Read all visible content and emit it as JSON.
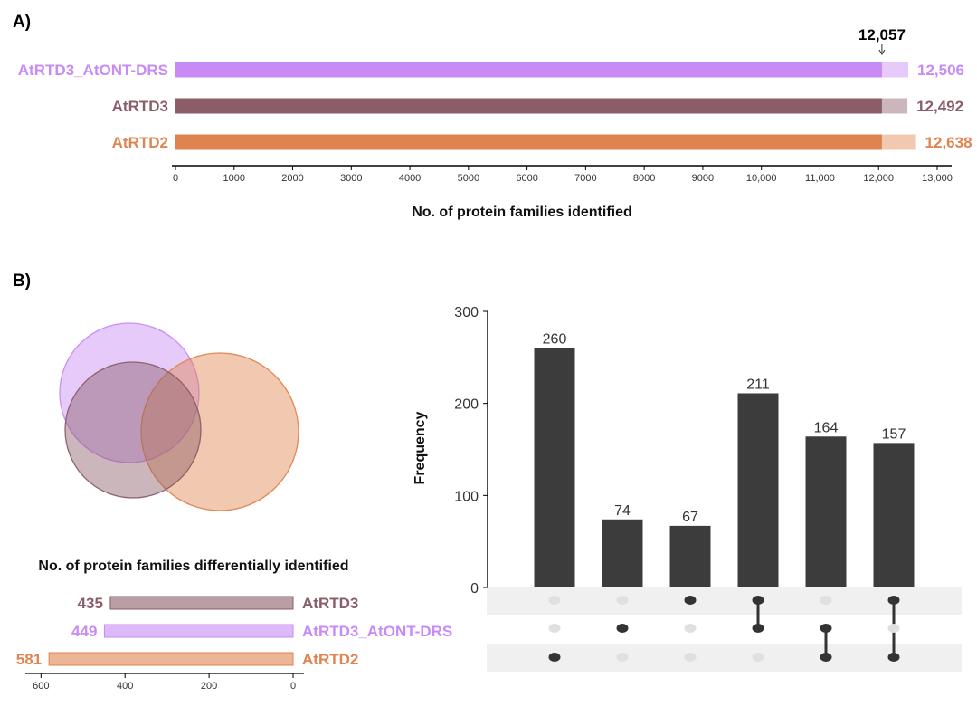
{
  "panel_a_label": "A)",
  "panel_b_label": "B)",
  "colors": {
    "AtRTD3_AtONT-DRS": "#c88af5",
    "AtRTD3": "#8a5d68",
    "AtRTD2": "#df8450"
  },
  "chart_data": [
    {
      "type": "bar",
      "orientation": "horizontal",
      "title": "",
      "xlabel": "No. of protein families identified",
      "ylabel": "",
      "categories": [
        "AtRTD3_AtONT-DRS",
        "AtRTD3",
        "AtRTD2"
      ],
      "values": [
        12506,
        12492,
        12638
      ],
      "value_labels": [
        "12,506",
        "12,492",
        "12,638"
      ],
      "shared_value": 12057,
      "shared_label": "12,057",
      "xlim": [
        0,
        13000
      ],
      "xticks": [
        0,
        1000,
        2000,
        3000,
        4000,
        5000,
        6000,
        7000,
        8000,
        9000,
        10000,
        11000,
        12000,
        13000
      ],
      "xtick_labels": [
        "0",
        "1000",
        "2000",
        "3000",
        "4000",
        "5000",
        "6000",
        "7000",
        "8000",
        "9000",
        "10,000",
        "11,000",
        "12,000",
        "13,000"
      ]
    },
    {
      "type": "venn",
      "sets": [
        "AtRTD3_AtONT-DRS",
        "AtRTD3",
        "AtRTD2"
      ]
    },
    {
      "type": "bar",
      "orientation": "horizontal-reversed",
      "title": "No. of protein families differentially identified",
      "categories": [
        "AtRTD3",
        "AtRTD3_AtONT-DRS",
        "AtRTD2"
      ],
      "values": [
        435,
        449,
        581
      ],
      "value_labels": [
        "435",
        "449",
        "581"
      ],
      "xlim": [
        0,
        620
      ],
      "xticks": [
        600,
        400,
        200,
        0
      ],
      "xtick_labels": [
        "600",
        "400",
        "200",
        "0"
      ]
    },
    {
      "type": "bar",
      "subtype": "upset",
      "ylabel": "Frequency",
      "ylim": [
        0,
        300
      ],
      "yticks": [
        0,
        100,
        200,
        300
      ],
      "ytick_labels": [
        "0",
        "100",
        "200",
        "300"
      ],
      "values": [
        260,
        74,
        67,
        211,
        164,
        157
      ],
      "value_labels": [
        "260",
        "74",
        "67",
        "211",
        "164",
        "157"
      ],
      "matrix_rows": [
        "AtRTD3",
        "AtRTD3_AtONT-DRS",
        "AtRTD2"
      ],
      "membership": [
        [
          2
        ],
        [
          1
        ],
        [
          0
        ],
        [
          0,
          1
        ],
        [
          1,
          2
        ],
        [
          0,
          2
        ]
      ]
    }
  ]
}
